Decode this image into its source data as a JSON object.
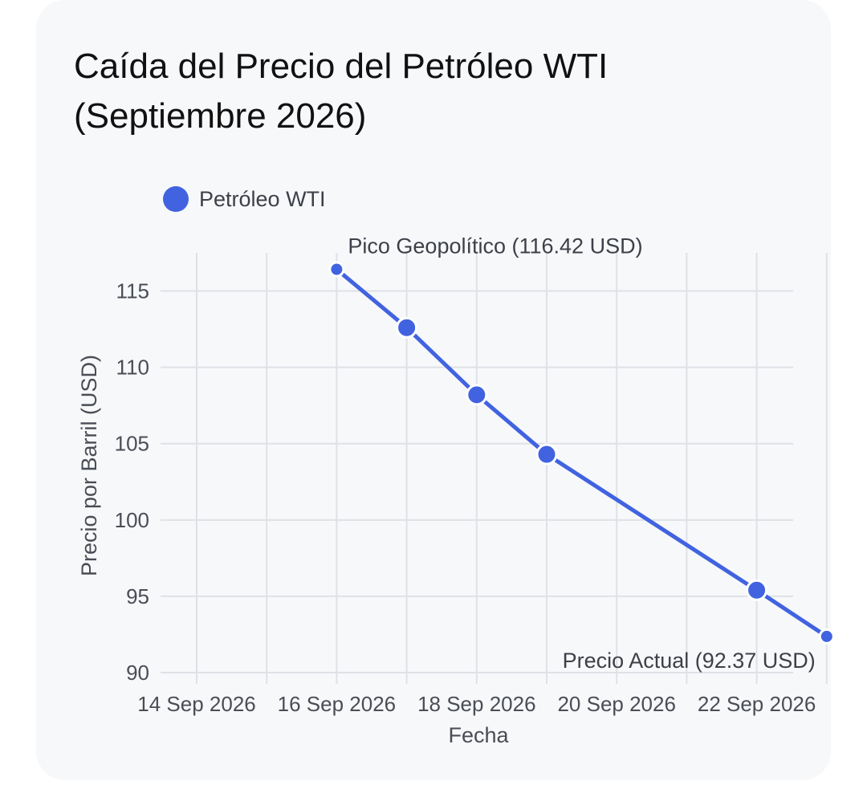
{
  "chart_data": {
    "type": "line",
    "title_lines": [
      "Caída del Precio del Petróleo WTI",
      "(Septiembre 2026)"
    ],
    "xlabel": "Fecha",
    "ylabel": "Precio por Barril (USD)",
    "legend_position": "top-left",
    "grid": true,
    "x_ticks": [
      "14 Sep 2026",
      "16 Sep 2026",
      "18 Sep 2026",
      "20 Sep 2026",
      "22 Sep 2026"
    ],
    "x_range": [
      "2026-09-14",
      "2026-09-23"
    ],
    "ylim": [
      90,
      117.5
    ],
    "y_ticks": [
      90,
      95,
      100,
      105,
      110,
      115
    ],
    "series": [
      {
        "name": "Petróleo WTI",
        "color": "#4163e0",
        "x": [
          "2026-09-16",
          "2026-09-17",
          "2026-09-18",
          "2026-09-19",
          "2026-09-22",
          "2026-09-23"
        ],
        "values": [
          116.42,
          112.6,
          108.2,
          104.3,
          95.4,
          92.37
        ]
      }
    ],
    "annotations": [
      {
        "x": "2026-09-16",
        "y": 116.42,
        "text": "Pico Geopolítico (116.42 USD)",
        "position": "above-right"
      },
      {
        "x": "2026-09-23",
        "y": 92.37,
        "text": "Precio Actual (92.37 USD)",
        "position": "below-left"
      }
    ]
  }
}
